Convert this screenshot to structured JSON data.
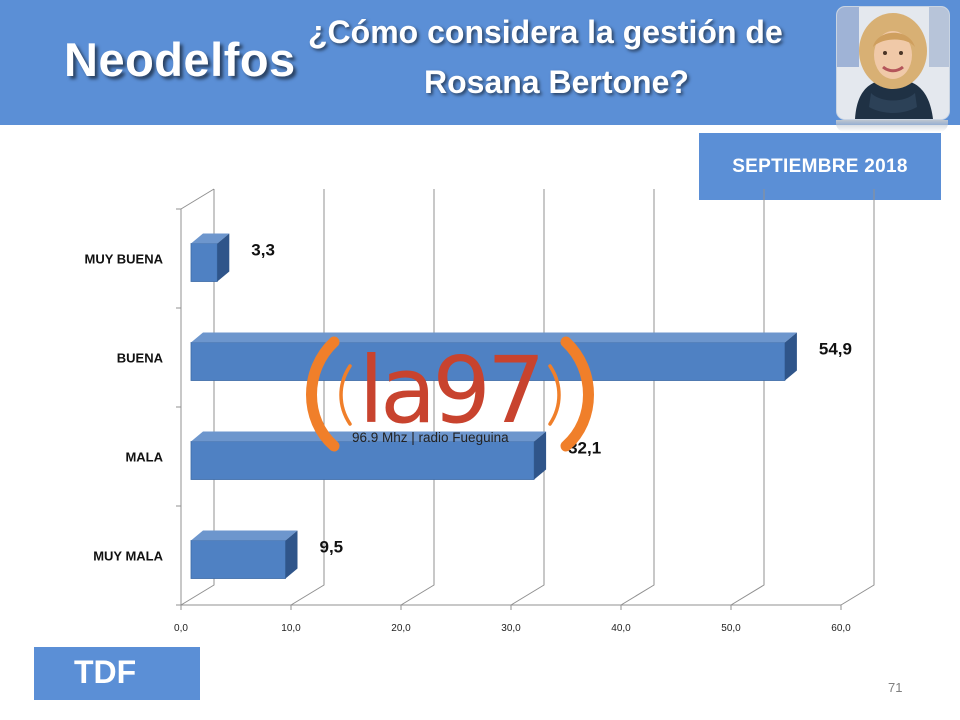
{
  "header": {
    "brand": "Neodelfos",
    "title_line1": "¿Cómo considera la gestión de",
    "title_line2": "Rosana Bertone?",
    "date_badge": "SEPTIEMBRE 2018"
  },
  "footer": {
    "region_badge": "TDF",
    "page_number": "71"
  },
  "watermark": {
    "logo_name": "la97",
    "tagline": "96.9 Mhz | radio Fueguina"
  },
  "colors": {
    "header_bg": "#5b8fd6",
    "bar_front": "#4f81c3",
    "bar_top": "#6d96cd",
    "bar_side": "#2f558a",
    "logo_orange": "#f07f2a",
    "logo_red": "#c8432e"
  },
  "chart_data": {
    "type": "bar",
    "orientation": "horizontal",
    "three_d": true,
    "categories": [
      "MUY BUENA",
      "BUENA",
      "MALA",
      "MUY MALA"
    ],
    "values": [
      3.3,
      54.9,
      32.1,
      9.5
    ],
    "value_labels": [
      "3,3",
      "54,9",
      "32,1",
      "9,5"
    ],
    "x_ticks": [
      "0,0",
      "10,0",
      "20,0",
      "30,0",
      "40,0",
      "50,0",
      "60,0"
    ],
    "xlim": [
      0,
      60
    ],
    "grid": true,
    "legend": "none"
  }
}
